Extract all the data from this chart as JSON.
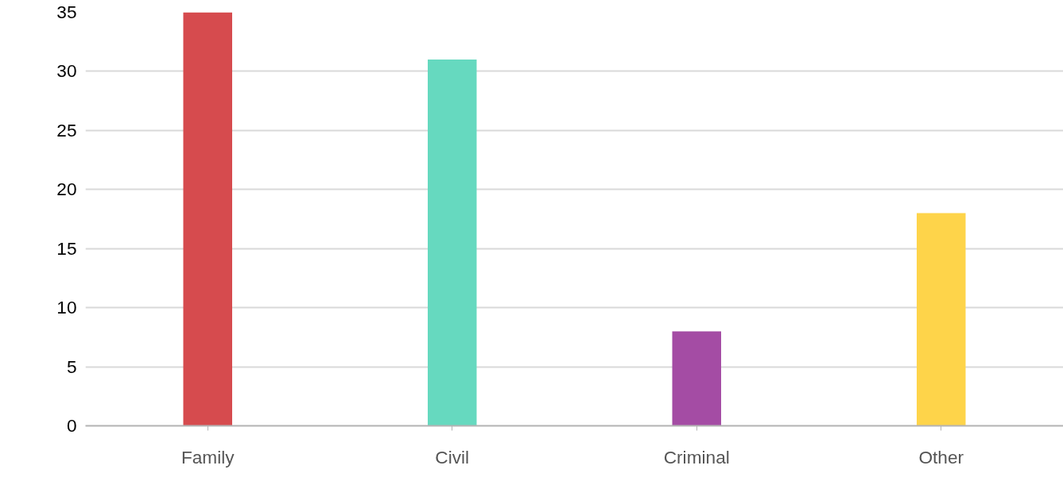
{
  "chart_data": {
    "type": "bar",
    "categories": [
      "Family",
      "Civil",
      "Criminal",
      "Other"
    ],
    "values": [
      35,
      31,
      8,
      18
    ],
    "colors": [
      "#d64b4e",
      "#66d9bf",
      "#a44ca4",
      "#fed44a"
    ],
    "ylim": [
      0,
      35
    ],
    "yticks": [
      0,
      5,
      10,
      15,
      20,
      25,
      30,
      35
    ],
    "grid": "y"
  }
}
